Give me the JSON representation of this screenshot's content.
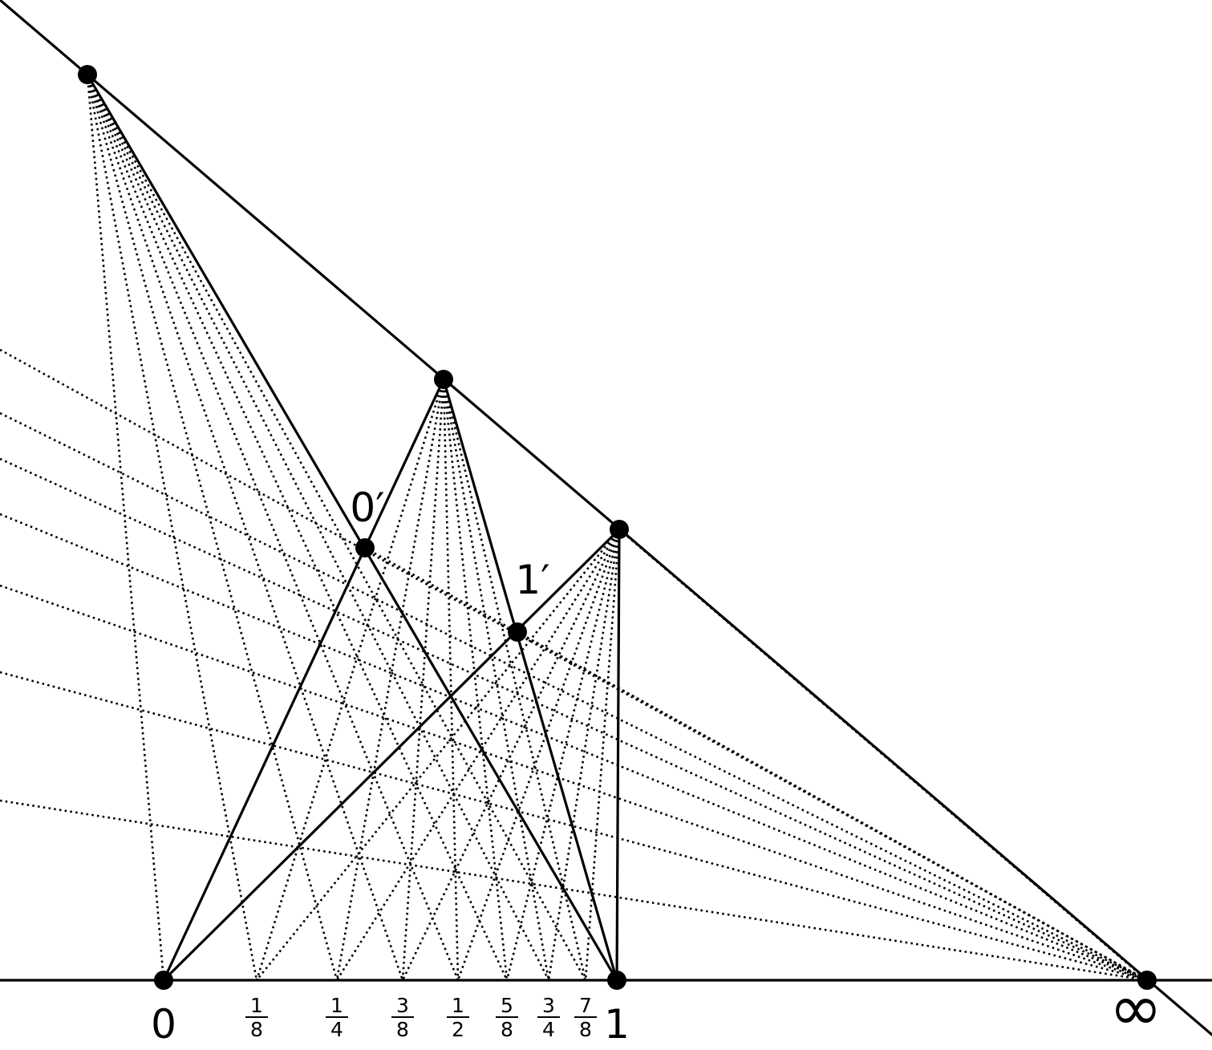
{
  "diagram": {
    "point_labels": {
      "zero": "0",
      "one": "1",
      "infinity": "∞",
      "zero_prime": "0′",
      "one_prime": "1′"
    },
    "fractions": [
      {
        "num": "1",
        "den": "8"
      },
      {
        "num": "1",
        "den": "4"
      },
      {
        "num": "3",
        "den": "8"
      },
      {
        "num": "1",
        "den": "2"
      },
      {
        "num": "5",
        "den": "8"
      },
      {
        "num": "3",
        "den": "4"
      },
      {
        "num": "7",
        "den": "8"
      }
    ],
    "colors": {
      "ink": "#000000",
      "background": "#ffffff"
    }
  }
}
